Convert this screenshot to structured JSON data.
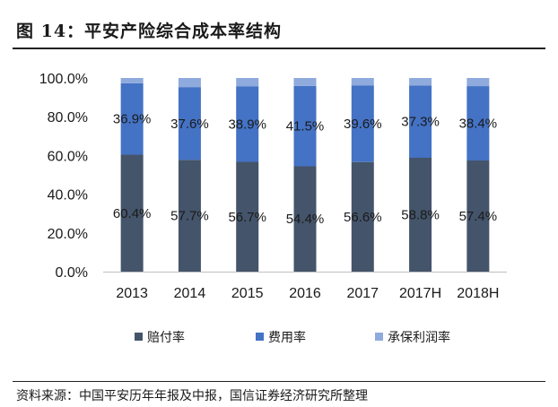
{
  "figure": {
    "title": "图 14：平安产险综合成本率结构",
    "source": "资料来源：中国平安历年年报及中报，国信证券经济研究所整理"
  },
  "colors": {
    "loss_ratio": "#44546a",
    "expense_ratio": "#4472c4",
    "profit_margin": "#8faadc",
    "axis": "#bfbfbf"
  },
  "chart_data": {
    "type": "bar",
    "stacked": true,
    "categories": [
      "2013",
      "2014",
      "2015",
      "2016",
      "2017",
      "2017H",
      "2018H"
    ],
    "series": [
      {
        "name": "赔付率",
        "values": [
          60.4,
          57.7,
          56.7,
          54.4,
          56.6,
          58.8,
          57.4
        ],
        "labels": [
          "60.4%",
          "57.7%",
          "56.7%",
          "54.4%",
          "56.6%",
          "58.8%",
          "57.4%"
        ]
      },
      {
        "name": "费用率",
        "values": [
          36.9,
          37.6,
          38.9,
          41.5,
          39.6,
          37.3,
          38.4
        ],
        "labels": [
          "36.9%",
          "37.6%",
          "38.9%",
          "41.5%",
          "39.6%",
          "37.3%",
          "38.4%"
        ]
      },
      {
        "name": "承保利润率",
        "values": [
          2.7,
          4.7,
          4.4,
          4.1,
          3.8,
          3.9,
          4.2
        ]
      }
    ],
    "ylim": [
      0,
      100
    ],
    "yticks": [
      "0.0%",
      "20.0%",
      "40.0%",
      "60.0%",
      "80.0%",
      "100.0%"
    ],
    "grid": false,
    "legend_position": "bottom"
  }
}
